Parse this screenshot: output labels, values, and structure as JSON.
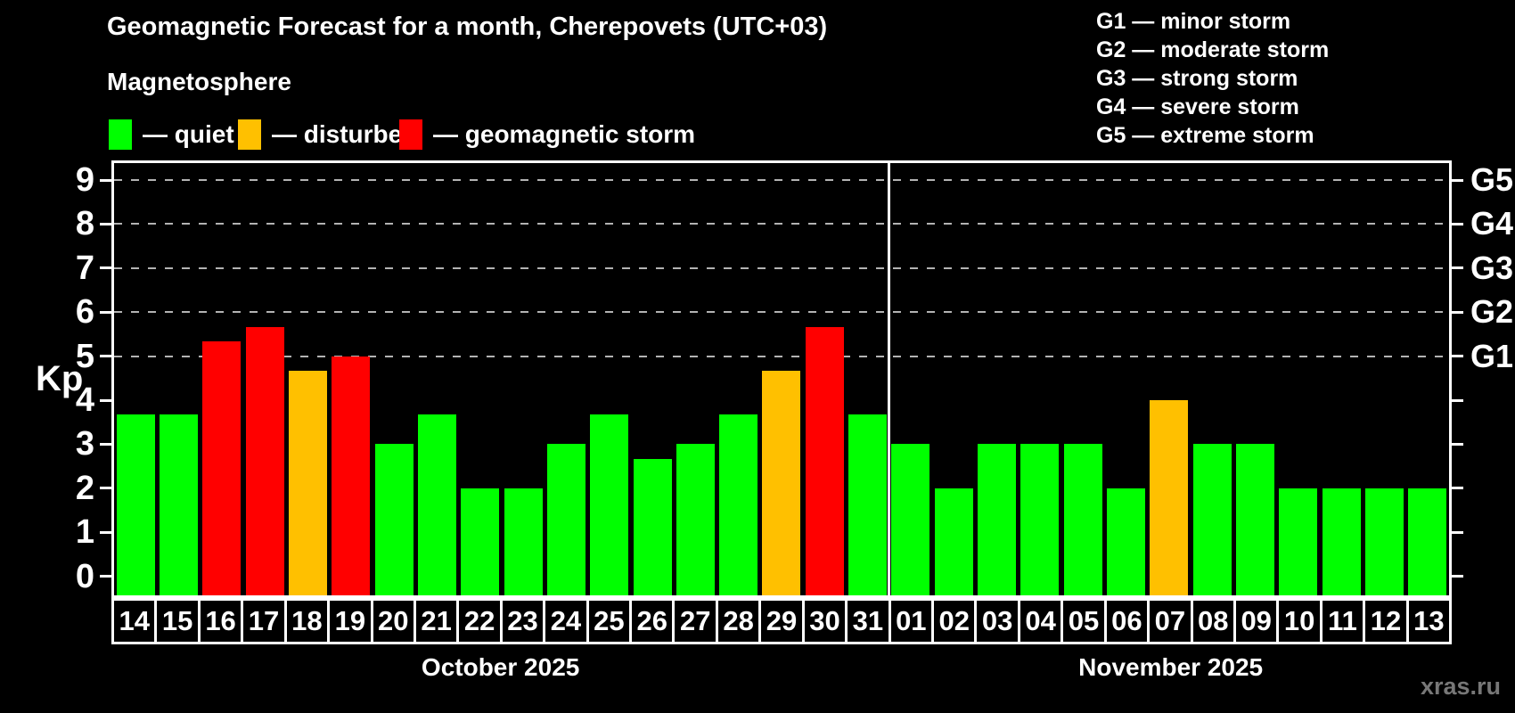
{
  "title": "Geomagnetic Forecast for a month, Cherepovets (UTC+03)",
  "subtitle": "Magnetosphere",
  "watermark": "xras.ru",
  "colors": {
    "background": "#000000",
    "quiet": "#00ff00",
    "disturbed": "#ffc000",
    "storm": "#ff0000",
    "axis": "#ffffff",
    "gridline": "#b3b3b3",
    "watermark_color": "#777777"
  },
  "legend": {
    "items": [
      {
        "key": "quiet",
        "label": "— quiet"
      },
      {
        "key": "disturbed",
        "label": "— disturbed"
      },
      {
        "key": "storm",
        "label": "— geomagnetic storm"
      }
    ]
  },
  "g_scale_legend": {
    "lines": [
      "G1 — minor storm",
      "G2 — moderate storm",
      "G3 — strong storm",
      "G4 — severe storm",
      "G5 — extreme storm"
    ]
  },
  "chart_data": {
    "type": "bar",
    "ylabel": "Kp",
    "ylim": [
      0,
      9
    ],
    "y_ticks": [
      0,
      1,
      2,
      3,
      4,
      5,
      6,
      7,
      8,
      9
    ],
    "grid": "dashed horizontal gridlines at G-storm levels only",
    "grid_levels": [
      5,
      6,
      7,
      8,
      9
    ],
    "right_axis": [
      {
        "kp": 5,
        "label": "G1"
      },
      {
        "kp": 6,
        "label": "G2"
      },
      {
        "kp": 7,
        "label": "G3"
      },
      {
        "kp": 8,
        "label": "G4"
      },
      {
        "kp": 9,
        "label": "G5"
      }
    ],
    "legend_position": "top-left",
    "months": [
      {
        "label": "October 2025",
        "days": [
          {
            "date": "14",
            "kp": 3.67,
            "state": "quiet"
          },
          {
            "date": "15",
            "kp": 3.67,
            "state": "quiet"
          },
          {
            "date": "16",
            "kp": 5.33,
            "state": "storm"
          },
          {
            "date": "17",
            "kp": 5.67,
            "state": "storm"
          },
          {
            "date": "18",
            "kp": 4.67,
            "state": "disturbed"
          },
          {
            "date": "19",
            "kp": 5.0,
            "state": "storm"
          },
          {
            "date": "20",
            "kp": 3.0,
            "state": "quiet"
          },
          {
            "date": "21",
            "kp": 3.67,
            "state": "quiet"
          },
          {
            "date": "22",
            "kp": 2.0,
            "state": "quiet"
          },
          {
            "date": "23",
            "kp": 2.0,
            "state": "quiet"
          },
          {
            "date": "24",
            "kp": 3.0,
            "state": "quiet"
          },
          {
            "date": "25",
            "kp": 3.67,
            "state": "quiet"
          },
          {
            "date": "26",
            "kp": 2.67,
            "state": "quiet"
          },
          {
            "date": "27",
            "kp": 3.0,
            "state": "quiet"
          },
          {
            "date": "28",
            "kp": 3.67,
            "state": "quiet"
          },
          {
            "date": "29",
            "kp": 4.67,
            "state": "disturbed"
          },
          {
            "date": "30",
            "kp": 5.67,
            "state": "storm"
          },
          {
            "date": "31",
            "kp": 3.67,
            "state": "quiet"
          }
        ]
      },
      {
        "label": "November 2025",
        "days": [
          {
            "date": "01",
            "kp": 3.0,
            "state": "quiet"
          },
          {
            "date": "02",
            "kp": 2.0,
            "state": "quiet"
          },
          {
            "date": "03",
            "kp": 3.0,
            "state": "quiet"
          },
          {
            "date": "04",
            "kp": 3.0,
            "state": "quiet"
          },
          {
            "date": "05",
            "kp": 3.0,
            "state": "quiet"
          },
          {
            "date": "06",
            "kp": 2.0,
            "state": "quiet"
          },
          {
            "date": "07",
            "kp": 4.0,
            "state": "disturbed"
          },
          {
            "date": "08",
            "kp": 3.0,
            "state": "quiet"
          },
          {
            "date": "09",
            "kp": 3.0,
            "state": "quiet"
          },
          {
            "date": "10",
            "kp": 2.0,
            "state": "quiet"
          },
          {
            "date": "11",
            "kp": 2.0,
            "state": "quiet"
          },
          {
            "date": "12",
            "kp": 2.0,
            "state": "quiet"
          },
          {
            "date": "13",
            "kp": 2.0,
            "state": "quiet"
          }
        ]
      }
    ]
  }
}
